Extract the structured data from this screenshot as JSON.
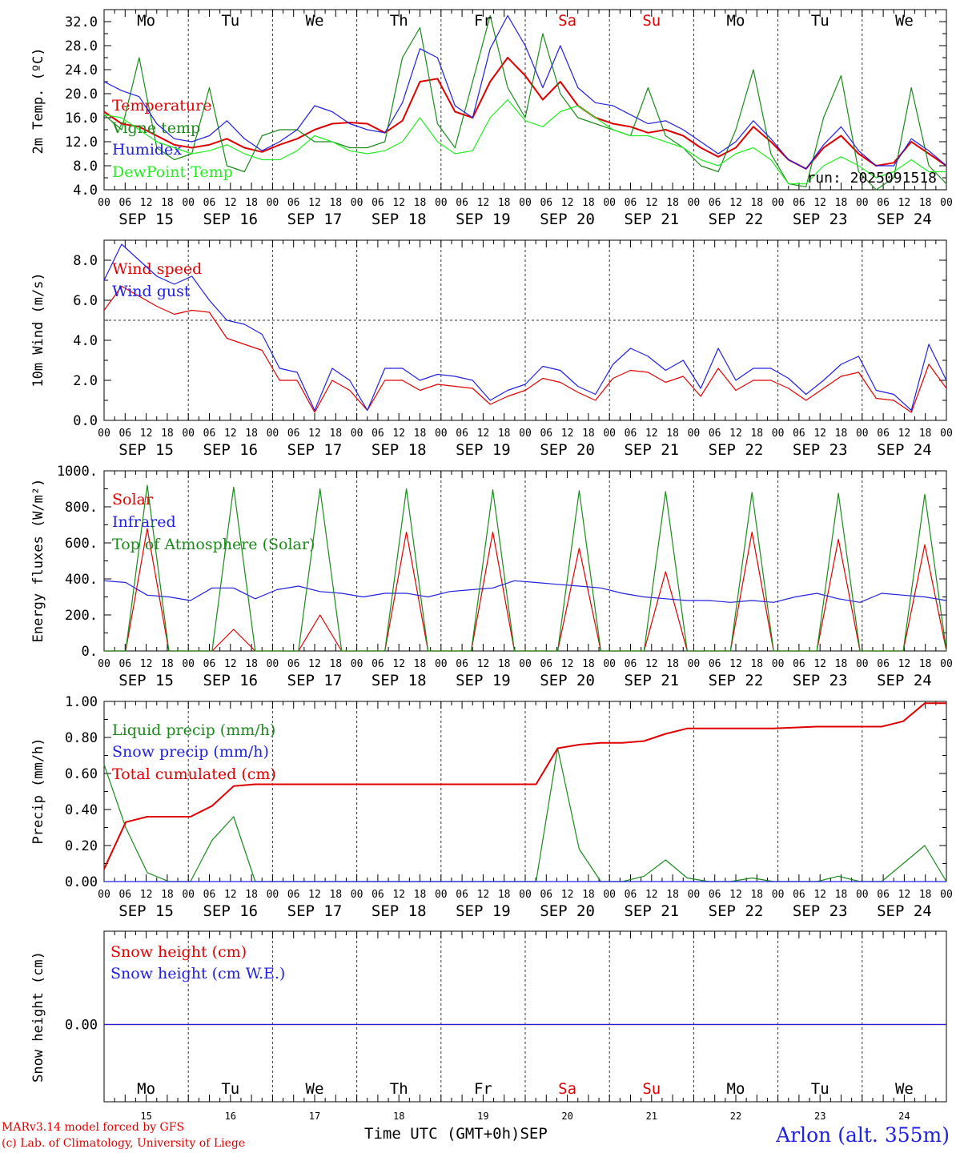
{
  "days": [
    {
      "dow": "Mo",
      "date": "SEP 15",
      "num": "15",
      "weekend": false
    },
    {
      "dow": "Tu",
      "date": "SEP 16",
      "num": "16",
      "weekend": false
    },
    {
      "dow": "We",
      "date": "SEP 17",
      "num": "17",
      "weekend": false
    },
    {
      "dow": "Th",
      "date": "SEP 18",
      "num": "18",
      "weekend": false
    },
    {
      "dow": "Fr",
      "date": "SEP 19",
      "num": "19",
      "weekend": false
    },
    {
      "dow": "Sa",
      "date": "SEP 20",
      "num": "20",
      "weekend": true
    },
    {
      "dow": "Su",
      "date": "SEP 21",
      "num": "21",
      "weekend": true
    },
    {
      "dow": "Mo",
      "date": "SEP 22",
      "num": "22",
      "weekend": false
    },
    {
      "dow": "Tu",
      "date": "SEP 23",
      "num": "23",
      "weekend": false
    },
    {
      "dow": "We",
      "date": "SEP 24",
      "num": "24",
      "weekend": false
    }
  ],
  "hour_ticks": [
    "00",
    "06",
    "12",
    "18"
  ],
  "final_tick": "00",
  "colors": {
    "red": "#e00000",
    "green": "#1a8a1a",
    "blue": "#2020e0",
    "lightgreen": "#22ee22",
    "weekend": "#e00000"
  },
  "footer": {
    "model": "MARv3.14 model forced by GFS",
    "lab": "(c) Lab. of Climatology, University of Liege",
    "axis_label": "Time UTC (GMT+0h)",
    "month": "SEP",
    "site": "Arlon (alt. 355m)"
  },
  "chart_data": [
    {
      "type": "line",
      "ylabel": "2m Temp. (ºC)",
      "ylim": [
        4.0,
        34.0
      ],
      "yticks": [
        "4.0",
        "8.0",
        "12.0",
        "16.0",
        "20.0",
        "24.0",
        "28.0",
        "32.0"
      ],
      "annotation": "run: 2025091518",
      "x_step_hours": 6,
      "series": [
        {
          "name": "Temperature",
          "color": "#e00000",
          "values": [
            17,
            15,
            14.5,
            13,
            11.5,
            11,
            11.5,
            12.5,
            11,
            10.3,
            11.5,
            12.5,
            14,
            15,
            15.2,
            15,
            13.5,
            15.5,
            22,
            22.5,
            17,
            16,
            22,
            26,
            23,
            19,
            22,
            18,
            16,
            15,
            14.5,
            13.5,
            14,
            13,
            11,
            9.5,
            11,
            14.5,
            12,
            9,
            7.5,
            11,
            13,
            10,
            8,
            8.5,
            12,
            10,
            8
          ]
        },
        {
          "name": "Vigne temp",
          "color": "#1a8a1a",
          "values": [
            16.5,
            14,
            26,
            11,
            9,
            10,
            21,
            8,
            7,
            13,
            14,
            14,
            12,
            12,
            11,
            11,
            12,
            26,
            31,
            15,
            11,
            22,
            33,
            21,
            16,
            30,
            20,
            16,
            15,
            14,
            13,
            21,
            13,
            11,
            8,
            7,
            14,
            24,
            10,
            5,
            4.5,
            16,
            23,
            7,
            4,
            6,
            21,
            8,
            5
          ]
        },
        {
          "name": "Humidex",
          "color": "#2020e0",
          "values": [
            22,
            20.5,
            19.5,
            15,
            12.5,
            12,
            13,
            15.5,
            12.5,
            10.5,
            12,
            14,
            18,
            17,
            15,
            14,
            13.5,
            18.5,
            27.5,
            26,
            18,
            16,
            27.5,
            33,
            28,
            21,
            28,
            21,
            18.5,
            18,
            16.5,
            15,
            15.5,
            14,
            12,
            10,
            12,
            15.5,
            12.5,
            9,
            7.5,
            11.5,
            14.5,
            10.5,
            8,
            8,
            12.5,
            10.5,
            8
          ]
        },
        {
          "name": "DewPoint Temp",
          "color": "#22ee22",
          "values": [
            16.5,
            16,
            14,
            12,
            11,
            10,
            10.5,
            11.5,
            10,
            9,
            9,
            10.5,
            13,
            12,
            10.5,
            10,
            10.5,
            12,
            16,
            12,
            10,
            10.5,
            16,
            19,
            15.5,
            14.5,
            17,
            18,
            16,
            14,
            13,
            13,
            12,
            11,
            9,
            8,
            10,
            11,
            9,
            5,
            5,
            8,
            9.5,
            8,
            6,
            7,
            9,
            7,
            7
          ]
        }
      ]
    },
    {
      "type": "line",
      "ylabel": "10m Wind (m/s)",
      "ylim": [
        0.0,
        9.0
      ],
      "yticks": [
        "0.0",
        "2.0",
        "4.0",
        "6.0",
        "8.0"
      ],
      "reference_line": 5.0,
      "x_step_hours": 6,
      "series": [
        {
          "name": "Wind speed",
          "color": "#e00000",
          "values": [
            5.5,
            6.7,
            6.2,
            5.7,
            5.3,
            5.5,
            5.4,
            4.1,
            3.8,
            3.5,
            2.0,
            2.0,
            0.4,
            2.0,
            1.5,
            0.5,
            2.0,
            2.0,
            1.5,
            1.8,
            1.7,
            1.6,
            0.8,
            1.2,
            1.5,
            2.1,
            1.9,
            1.4,
            1.0,
            2.1,
            2.5,
            2.4,
            1.9,
            2.2,
            1.2,
            2.6,
            1.5,
            2.0,
            2.0,
            1.6,
            1.0,
            1.6,
            2.2,
            2.4,
            1.1,
            1.0,
            0.4,
            2.8,
            1.6
          ]
        },
        {
          "name": "Wind gust",
          "color": "#2020e0",
          "values": [
            7.0,
            8.8,
            8.0,
            7.2,
            6.8,
            7.2,
            6.0,
            5.0,
            4.8,
            4.3,
            2.6,
            2.4,
            0.5,
            2.6,
            2.0,
            0.5,
            2.6,
            2.6,
            2.0,
            2.3,
            2.2,
            2.0,
            1.0,
            1.5,
            1.8,
            2.7,
            2.5,
            1.7,
            1.3,
            2.8,
            3.6,
            3.2,
            2.5,
            3.0,
            1.6,
            3.6,
            2.0,
            2.6,
            2.6,
            2.1,
            1.3,
            2.0,
            2.8,
            3.2,
            1.5,
            1.3,
            0.5,
            3.8,
            2.0
          ]
        }
      ]
    },
    {
      "type": "line",
      "ylabel": "Energy fluxes (W/m²)",
      "ylim": [
        0,
        1000
      ],
      "yticks": [
        "0.",
        "200.",
        "400.",
        "600.",
        "800.",
        "1000."
      ],
      "x_step_hours": 6,
      "series": [
        {
          "name": "Solar",
          "color": "#e00000",
          "values": [
            0,
            0,
            680,
            0,
            0,
            0,
            120,
            0,
            0,
            0,
            200,
            0,
            0,
            0,
            660,
            0,
            0,
            0,
            660,
            0,
            0,
            0,
            570,
            0,
            0,
            0,
            440,
            0,
            0,
            0,
            660,
            0,
            0,
            0,
            620,
            0,
            0,
            0,
            590,
            0
          ]
        },
        {
          "name": "Infrared",
          "color": "#2020e0",
          "values": [
            390,
            380,
            310,
            300,
            280,
            350,
            350,
            290,
            340,
            360,
            330,
            320,
            300,
            320,
            320,
            300,
            330,
            340,
            350,
            390,
            380,
            370,
            360,
            350,
            320,
            300,
            290,
            280,
            280,
            270,
            280,
            270,
            300,
            320,
            290,
            270,
            320,
            310,
            300,
            280
          ]
        },
        {
          "name": "Top of Atmosphere (Solar)",
          "color": "#1a8a1a",
          "values": [
            0,
            0,
            920,
            0,
            0,
            0,
            910,
            0,
            0,
            0,
            900,
            0,
            0,
            0,
            900,
            0,
            0,
            0,
            895,
            0,
            0,
            0,
            890,
            0,
            0,
            0,
            885,
            0,
            0,
            0,
            880,
            0,
            0,
            0,
            875,
            0,
            0,
            0,
            870,
            0
          ]
        }
      ]
    },
    {
      "type": "line",
      "ylabel": "Precip (mm/h)",
      "ylim": [
        0.0,
        1.0
      ],
      "yticks": [
        "0.00",
        "0.20",
        "0.40",
        "0.60",
        "0.80",
        "1.00"
      ],
      "x_step_hours": 6,
      "series": [
        {
          "name": "Liquid precip (mm/h)",
          "color": "#1a8a1a",
          "values": [
            0.65,
            0.3,
            0.05,
            0,
            0,
            0.23,
            0.36,
            0,
            0,
            0,
            0,
            0,
            0,
            0,
            0,
            0,
            0,
            0,
            0,
            0,
            0,
            0.74,
            0.18,
            0,
            0,
            0.03,
            0.12,
            0.02,
            0,
            0,
            0.02,
            0,
            0,
            0,
            0.03,
            0,
            0,
            0.1,
            0.2,
            0
          ]
        },
        {
          "name": "Snow precip (mm/h)",
          "color": "#2020e0",
          "values": [
            0,
            0,
            0,
            0,
            0,
            0,
            0,
            0,
            0,
            0,
            0,
            0,
            0,
            0,
            0,
            0,
            0,
            0,
            0,
            0,
            0,
            0,
            0,
            0,
            0,
            0,
            0,
            0,
            0,
            0,
            0,
            0,
            0,
            0,
            0,
            0,
            0,
            0,
            0,
            0
          ]
        },
        {
          "name": "Total cumulated (cm)",
          "color": "#e00000",
          "values": [
            0.07,
            0.33,
            0.36,
            0.36,
            0.36,
            0.42,
            0.53,
            0.54,
            0.54,
            0.54,
            0.54,
            0.54,
            0.54,
            0.54,
            0.54,
            0.54,
            0.54,
            0.54,
            0.54,
            0.54,
            0.54,
            0.74,
            0.76,
            0.77,
            0.77,
            0.78,
            0.82,
            0.85,
            0.85,
            0.85,
            0.85,
            0.85,
            0.855,
            0.86,
            0.86,
            0.86,
            0.86,
            0.89,
            0.99,
            0.99
          ]
        }
      ]
    },
    {
      "type": "line",
      "ylabel": "Snow height (cm)",
      "yticks": [
        "0.00"
      ],
      "x_step_hours": 6,
      "series": [
        {
          "name": "Snow height (cm)",
          "color": "#e00000",
          "values": [
            0,
            0
          ]
        },
        {
          "name": "Snow height (cm W.E.)",
          "color": "#2020e0",
          "values": [
            0,
            0
          ]
        }
      ]
    }
  ]
}
